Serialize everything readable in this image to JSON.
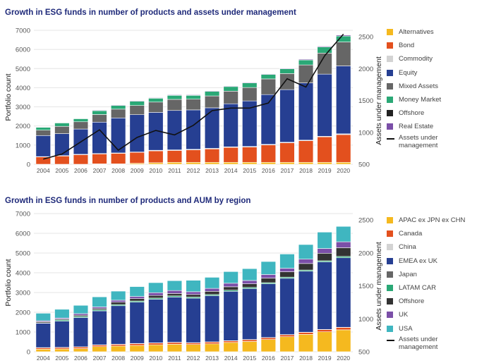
{
  "chart_data": [
    {
      "type": "bar",
      "stacked": true,
      "title": "Growth in ESG funds in number of products and assets under management",
      "xlabel": "",
      "ylabel": "Portfolio count",
      "y2label": "Assets under management",
      "ylim": [
        0,
        7000
      ],
      "yticks": [
        "0",
        "1000",
        "2000",
        "3000",
        "4000",
        "5000",
        "6000",
        "7000"
      ],
      "y2lim": [
        500,
        2500
      ],
      "y2ticks": [
        "500",
        "1000",
        "1500",
        "2000",
        "2500"
      ],
      "grid": true,
      "legend_position": "right",
      "categories": [
        "2004",
        "2005",
        "2006",
        "2007",
        "2008",
        "2009",
        "2010",
        "2011",
        "2012",
        "2013",
        "2014",
        "2015",
        "2016",
        "2017",
        "2018",
        "2019",
        "2020"
      ],
      "series": [
        {
          "name": "Alternatives",
          "color": "#f5b91f",
          "values": [
            0,
            0,
            0,
            20,
            20,
            50,
            80,
            100,
            100,
            100,
            100,
            100,
            100,
            100,
            100,
            100,
            100
          ]
        },
        {
          "name": "Bond",
          "color": "#e3501e",
          "values": [
            380,
            430,
            500,
            520,
            550,
            570,
            620,
            620,
            650,
            700,
            780,
            800,
            910,
            1020,
            1130,
            1330,
            1450
          ]
        },
        {
          "name": "Commodity",
          "color": "#d3d3d3",
          "values": [
            20,
            20,
            20,
            20,
            20,
            20,
            30,
            30,
            30,
            30,
            30,
            30,
            30,
            30,
            30,
            30,
            40
          ]
        },
        {
          "name": "Equity",
          "color": "#263f92",
          "values": [
            1100,
            1150,
            1320,
            1640,
            1830,
            1950,
            1980,
            2060,
            2060,
            2120,
            2250,
            2380,
            2600,
            2750,
            2990,
            3250,
            3550
          ]
        },
        {
          "name": "Mixed Assets",
          "color": "#666666",
          "values": [
            280,
            380,
            380,
            400,
            460,
            480,
            540,
            580,
            560,
            620,
            660,
            700,
            820,
            840,
            940,
            1100,
            1250
          ]
        },
        {
          "name": "Money Market",
          "color": "#2aa876",
          "values": [
            150,
            180,
            160,
            200,
            190,
            220,
            200,
            210,
            200,
            240,
            240,
            240,
            230,
            250,
            260,
            320,
            310
          ]
        },
        {
          "name": "Offshore",
          "color": "#222222",
          "values": [
            0,
            0,
            0,
            0,
            0,
            0,
            0,
            0,
            0,
            0,
            0,
            0,
            0,
            0,
            0,
            0,
            0
          ]
        },
        {
          "name": "Real Estate",
          "color": "#7b4fa8",
          "values": [
            20,
            20,
            20,
            30,
            30,
            30,
            30,
            30,
            30,
            30,
            30,
            30,
            30,
            30,
            40,
            40,
            50
          ]
        }
      ],
      "line_series": {
        "name": "Assets under management",
        "axis": "right",
        "color": "#111111",
        "values": [
          580,
          660,
          850,
          1040,
          720,
          920,
          1030,
          960,
          1110,
          1340,
          1380,
          1380,
          1460,
          1840,
          1710,
          2200,
          2540
        ]
      }
    },
    {
      "type": "bar",
      "stacked": true,
      "title": "Growth in ESG funds in number of products and AUM by region",
      "xlabel": "",
      "ylabel": "Portfolio count",
      "y2label": "Assets under management",
      "ylim": [
        0,
        7000
      ],
      "yticks": [
        "0",
        "1000",
        "2000",
        "3000",
        "4000",
        "5000",
        "6000",
        "7000"
      ],
      "y2lim": [
        500,
        2500
      ],
      "y2ticks": [
        "500",
        "1000",
        "1500",
        "2000",
        "2500"
      ],
      "grid": true,
      "legend_position": "right",
      "categories": [
        "2004",
        "2005",
        "2006",
        "2007",
        "2008",
        "2009",
        "2010",
        "2011",
        "2012",
        "2013",
        "2014",
        "2015",
        "2016",
        "2017",
        "2018",
        "2019",
        "2020"
      ],
      "series": [
        {
          "name": "APAC ex JPN ex CHN",
          "color": "#f5b91f",
          "values": [
            130,
            140,
            160,
            260,
            290,
            320,
            350,
            380,
            370,
            400,
            470,
            520,
            620,
            760,
            880,
            1010,
            1110
          ]
        },
        {
          "name": "Canada",
          "color": "#e3501e",
          "values": [
            70,
            70,
            80,
            80,
            80,
            90,
            90,
            90,
            80,
            90,
            80,
            90,
            90,
            100,
            100,
            110,
            120
          ]
        },
        {
          "name": "China",
          "color": "#d3d3d3",
          "values": [
            10,
            10,
            10,
            10,
            10,
            10,
            10,
            10,
            10,
            10,
            10,
            10,
            10,
            10,
            10,
            10,
            10
          ]
        },
        {
          "name": "EMEA ex UK",
          "color": "#263f92",
          "values": [
            1230,
            1330,
            1480,
            1720,
            1950,
            2090,
            2210,
            2290,
            2250,
            2340,
            2500,
            2580,
            2720,
            2850,
            3090,
            3420,
            3520
          ]
        },
        {
          "name": "Japan",
          "color": "#666666",
          "values": [
            0,
            0,
            0,
            0,
            0,
            0,
            0,
            0,
            0,
            0,
            0,
            0,
            0,
            0,
            0,
            0,
            0
          ]
        },
        {
          "name": "LATAM CAR",
          "color": "#2aa876",
          "values": [
            20,
            60,
            60,
            60,
            60,
            60,
            60,
            60,
            60,
            60,
            60,
            60,
            60,
            60,
            60,
            60,
            70
          ]
        },
        {
          "name": "Offshore",
          "color": "#333333",
          "values": [
            60,
            50,
            60,
            60,
            120,
            120,
            130,
            120,
            130,
            160,
            170,
            180,
            230,
            270,
            330,
            380,
            440
          ]
        },
        {
          "name": "UK",
          "color": "#7b4fa8",
          "values": [
            50,
            50,
            80,
            80,
            100,
            110,
            140,
            150,
            140,
            150,
            180,
            170,
            180,
            180,
            220,
            240,
            300
          ]
        },
        {
          "name": "USA",
          "color": "#3fb6c0",
          "values": [
            380,
            440,
            420,
            510,
            460,
            500,
            510,
            500,
            580,
            560,
            590,
            600,
            660,
            720,
            740,
            830,
            780
          ]
        }
      ],
      "line_series": {
        "name": "Assets under management",
        "axis": "right",
        "color": "#111111",
        "values": []
      }
    }
  ],
  "charts": [
    {
      "title": "Growth in ESG funds in number of products and assets under management",
      "ylabel": "Portfolio count",
      "y2label": "Assets under management",
      "legend": [
        "Alternatives",
        "Bond",
        "Commodity",
        "Equity",
        "Mixed Assets",
        "Money Market",
        "Offshore",
        "Real Estate"
      ],
      "legend_line": "Assets under management"
    },
    {
      "title": "Growth in ESG funds in number of products and AUM by region",
      "ylabel": "Portfolio count",
      "y2label": "Assets under management",
      "legend": [
        "APAC ex JPN ex CHN",
        "Canada",
        "China",
        "EMEA ex UK",
        "Japan",
        "LATAM CAR",
        "Offshore",
        "UK",
        "USA"
      ],
      "legend_line": "Assets under management"
    }
  ]
}
